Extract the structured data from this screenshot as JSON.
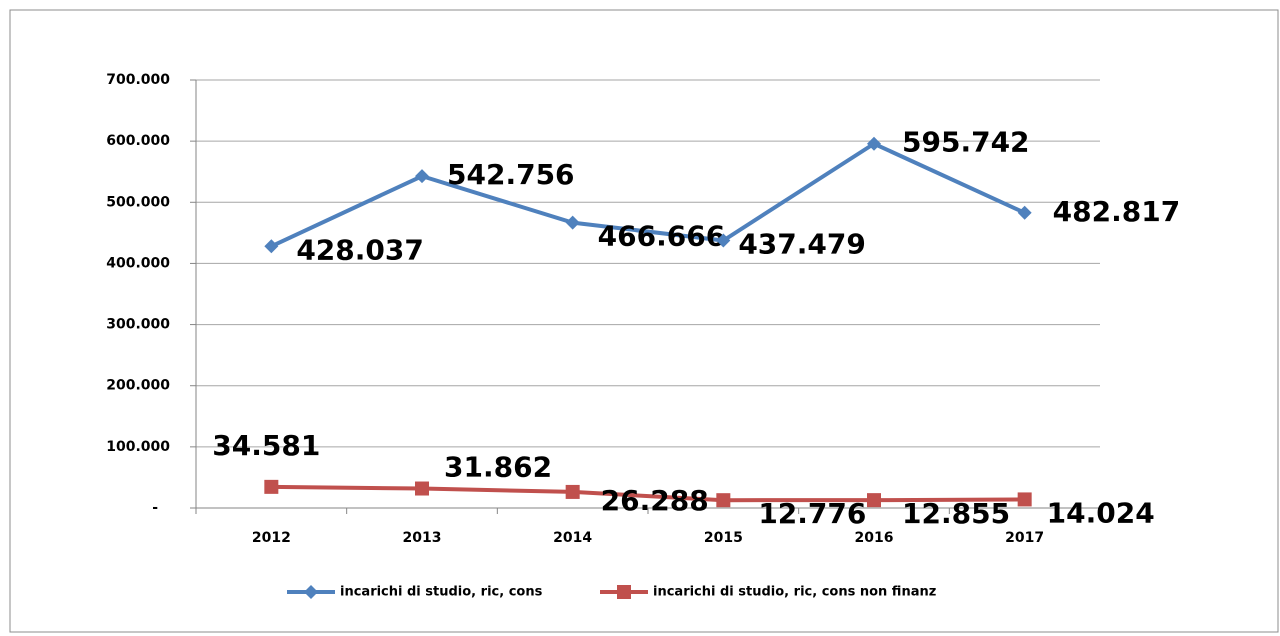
{
  "chart_data": {
    "type": "line",
    "categories": [
      "2012",
      "2013",
      "2014",
      "2015",
      "2016",
      "2017"
    ],
    "series": [
      {
        "name": "incarichi di studio, ric, cons",
        "color": "#4f81bd",
        "marker": "diamond",
        "values": [
          428037,
          542756,
          466666,
          437479,
          595742,
          482817
        ],
        "value_labels": [
          "428.037",
          "542.756",
          "466.666",
          "437.479",
          "595.742",
          "482.817"
        ]
      },
      {
        "name": "incarichi di studio, ric, cons non finanz",
        "color": "#c0504d",
        "marker": "square",
        "values": [
          34581,
          31862,
          26288,
          12776,
          12855,
          14024
        ],
        "value_labels": [
          "34.581",
          "31.862",
          "26.288",
          "12.776",
          "12.855",
          "14.024"
        ]
      }
    ],
    "ylim": [
      0,
      700000
    ],
    "yticks": [
      {
        "value": 0,
        "label": "-"
      },
      {
        "value": 100000,
        "label": "100.000"
      },
      {
        "value": 200000,
        "label": "200.000"
      },
      {
        "value": 300000,
        "label": "300.000"
      },
      {
        "value": 400000,
        "label": "400.000"
      },
      {
        "value": 500000,
        "label": "500.000"
      },
      {
        "value": 600000,
        "label": "600.000"
      },
      {
        "value": 700000,
        "label": "700.000"
      }
    ],
    "grid": true,
    "legend": "bottom"
  }
}
